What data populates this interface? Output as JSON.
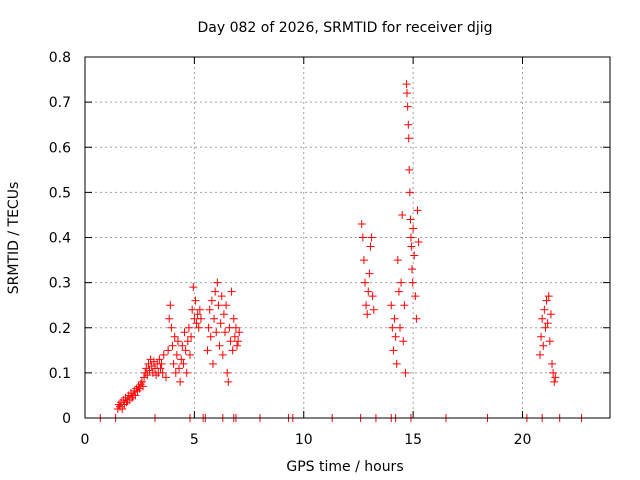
{
  "chart_data": {
    "type": "scatter",
    "title": "Day 082 of 2026, SRMTID for receiver djig",
    "xlabel": "GPS time / hours",
    "ylabel": "SRMTID / TECUs",
    "xlim": [
      0,
      24
    ],
    "ylim": [
      0,
      0.8
    ],
    "grid": true,
    "marker": "+",
    "color": "#ff0000",
    "x_ticks": [
      0,
      5,
      10,
      15,
      20
    ],
    "y_ticks": [
      0,
      0.1,
      0.2,
      0.3,
      0.4,
      0.5,
      0.6,
      0.7,
      0.8
    ],
    "x_tick_labels": [
      "0",
      "5",
      "10",
      "15",
      "20"
    ],
    "y_tick_labels": [
      "0",
      "0.1",
      "0.2",
      "0.3",
      "0.4",
      "0.5",
      "0.6",
      "0.7",
      "0.8"
    ],
    "series": [
      {
        "name": "SRMTID",
        "points": [
          [
            0.7,
            0.0
          ],
          [
            1.4,
            0.0
          ],
          [
            3.2,
            0.0
          ],
          [
            4.8,
            0.0
          ],
          [
            5.4,
            0.0
          ],
          [
            5.5,
            0.0
          ],
          [
            6.3,
            0.0
          ],
          [
            6.8,
            0.0
          ],
          [
            6.9,
            0.0
          ],
          [
            8.0,
            0.0
          ],
          [
            9.3,
            0.0
          ],
          [
            9.5,
            0.0
          ],
          [
            11.3,
            0.0
          ],
          [
            12.6,
            0.0
          ],
          [
            13.3,
            0.0
          ],
          [
            14.0,
            0.0
          ],
          [
            14.2,
            0.0
          ],
          [
            14.9,
            0.0
          ],
          [
            16.5,
            0.0
          ],
          [
            18.4,
            0.0
          ],
          [
            20.2,
            0.0
          ],
          [
            20.9,
            0.0
          ],
          [
            21.7,
            0.0
          ],
          [
            22.7,
            0.0
          ],
          [
            1.5,
            0.02
          ],
          [
            1.55,
            0.03
          ],
          [
            1.6,
            0.025
          ],
          [
            1.65,
            0.035
          ],
          [
            1.7,
            0.02
          ],
          [
            1.75,
            0.04
          ],
          [
            1.8,
            0.03
          ],
          [
            1.85,
            0.045
          ],
          [
            1.9,
            0.035
          ],
          [
            1.95,
            0.04
          ],
          [
            2.0,
            0.05
          ],
          [
            2.05,
            0.04
          ],
          [
            2.1,
            0.055
          ],
          [
            2.15,
            0.045
          ],
          [
            2.2,
            0.05
          ],
          [
            2.25,
            0.06
          ],
          [
            2.3,
            0.05
          ],
          [
            2.35,
            0.065
          ],
          [
            2.4,
            0.06
          ],
          [
            2.45,
            0.07
          ],
          [
            2.5,
            0.065
          ],
          [
            2.55,
            0.075
          ],
          [
            2.6,
            0.08
          ],
          [
            2.65,
            0.07
          ],
          [
            2.7,
            0.09
          ],
          [
            2.75,
            0.1
          ],
          [
            2.8,
            0.11
          ],
          [
            2.85,
            0.095
          ],
          [
            2.9,
            0.12
          ],
          [
            2.95,
            0.105
          ],
          [
            3.0,
            0.13
          ],
          [
            3.05,
            0.115
          ],
          [
            3.1,
            0.1
          ],
          [
            3.15,
            0.125
          ],
          [
            3.2,
            0.11
          ],
          [
            3.25,
            0.095
          ],
          [
            3.3,
            0.12
          ],
          [
            3.35,
            0.1
          ],
          [
            3.4,
            0.13
          ],
          [
            3.45,
            0.11
          ],
          [
            3.5,
            0.12
          ],
          [
            3.55,
            0.1
          ],
          [
            3.6,
            0.14
          ],
          [
            3.7,
            0.09
          ],
          [
            3.8,
            0.15
          ],
          [
            3.85,
            0.22
          ],
          [
            3.9,
            0.25
          ],
          [
            3.95,
            0.2
          ],
          [
            4.0,
            0.16
          ],
          [
            4.05,
            0.12
          ],
          [
            4.1,
            0.18
          ],
          [
            4.15,
            0.1
          ],
          [
            4.2,
            0.14
          ],
          [
            4.25,
            0.17
          ],
          [
            4.3,
            0.11
          ],
          [
            4.35,
            0.08
          ],
          [
            4.4,
            0.13
          ],
          [
            4.45,
            0.16
          ],
          [
            4.5,
            0.12
          ],
          [
            4.55,
            0.19
          ],
          [
            4.6,
            0.15
          ],
          [
            4.65,
            0.1
          ],
          [
            4.7,
            0.17
          ],
          [
            4.75,
            0.2
          ],
          [
            4.8,
            0.14
          ],
          [
            4.85,
            0.18
          ],
          [
            4.9,
            0.24
          ],
          [
            4.95,
            0.29
          ],
          [
            5.0,
            0.22
          ],
          [
            5.05,
            0.26
          ],
          [
            5.1,
            0.21
          ],
          [
            5.15,
            0.23
          ],
          [
            5.2,
            0.2
          ],
          [
            5.25,
            0.24
          ],
          [
            5.3,
            0.22
          ],
          [
            5.6,
            0.15
          ],
          [
            5.65,
            0.2
          ],
          [
            5.7,
            0.24
          ],
          [
            5.75,
            0.18
          ],
          [
            5.8,
            0.26
          ],
          [
            5.85,
            0.12
          ],
          [
            5.9,
            0.22
          ],
          [
            5.95,
            0.28
          ],
          [
            6.0,
            0.19
          ],
          [
            6.05,
            0.3
          ],
          [
            6.1,
            0.25
          ],
          [
            6.15,
            0.16
          ],
          [
            6.2,
            0.21
          ],
          [
            6.25,
            0.27
          ],
          [
            6.3,
            0.14
          ],
          [
            6.35,
            0.23
          ],
          [
            6.4,
            0.19
          ],
          [
            6.45,
            0.25
          ],
          [
            6.5,
            0.1
          ],
          [
            6.55,
            0.08
          ],
          [
            6.6,
            0.2
          ],
          [
            6.65,
            0.17
          ],
          [
            6.7,
            0.28
          ],
          [
            6.75,
            0.15
          ],
          [
            6.8,
            0.22
          ],
          [
            6.85,
            0.18
          ],
          [
            6.9,
            0.2
          ],
          [
            6.95,
            0.16
          ],
          [
            7.0,
            0.17
          ],
          [
            7.05,
            0.19
          ],
          [
            12.65,
            0.43
          ],
          [
            12.7,
            0.4
          ],
          [
            12.75,
            0.35
          ],
          [
            12.8,
            0.3
          ],
          [
            12.85,
            0.25
          ],
          [
            12.9,
            0.23
          ],
          [
            12.95,
            0.28
          ],
          [
            13.0,
            0.32
          ],
          [
            13.05,
            0.38
          ],
          [
            13.1,
            0.4
          ],
          [
            13.15,
            0.27
          ],
          [
            13.2,
            0.24
          ],
          [
            14.0,
            0.25
          ],
          [
            14.05,
            0.2
          ],
          [
            14.1,
            0.15
          ],
          [
            14.15,
            0.22
          ],
          [
            14.2,
            0.18
          ],
          [
            14.25,
            0.12
          ],
          [
            14.3,
            0.35
          ],
          [
            14.35,
            0.28
          ],
          [
            14.4,
            0.2
          ],
          [
            14.45,
            0.3
          ],
          [
            14.5,
            0.45
          ],
          [
            14.55,
            0.17
          ],
          [
            14.6,
            0.25
          ],
          [
            14.65,
            0.1
          ],
          [
            14.7,
            0.74
          ],
          [
            14.72,
            0.72
          ],
          [
            14.75,
            0.69
          ],
          [
            14.78,
            0.65
          ],
          [
            14.8,
            0.62
          ],
          [
            14.82,
            0.55
          ],
          [
            14.85,
            0.5
          ],
          [
            14.88,
            0.44
          ],
          [
            14.9,
            0.4
          ],
          [
            14.92,
            0.38
          ],
          [
            14.95,
            0.33
          ],
          [
            14.98,
            0.3
          ],
          [
            15.0,
            0.42
          ],
          [
            15.05,
            0.36
          ],
          [
            15.1,
            0.27
          ],
          [
            15.15,
            0.22
          ],
          [
            15.2,
            0.46
          ],
          [
            15.25,
            0.39
          ],
          [
            20.8,
            0.14
          ],
          [
            20.85,
            0.18
          ],
          [
            20.9,
            0.22
          ],
          [
            20.95,
            0.16
          ],
          [
            21.0,
            0.24
          ],
          [
            21.05,
            0.2
          ],
          [
            21.1,
            0.26
          ],
          [
            21.15,
            0.21
          ],
          [
            21.2,
            0.27
          ],
          [
            21.25,
            0.17
          ],
          [
            21.3,
            0.23
          ],
          [
            21.35,
            0.12
          ],
          [
            21.4,
            0.1
          ],
          [
            21.45,
            0.08
          ],
          [
            21.5,
            0.09
          ]
        ]
      }
    ]
  }
}
